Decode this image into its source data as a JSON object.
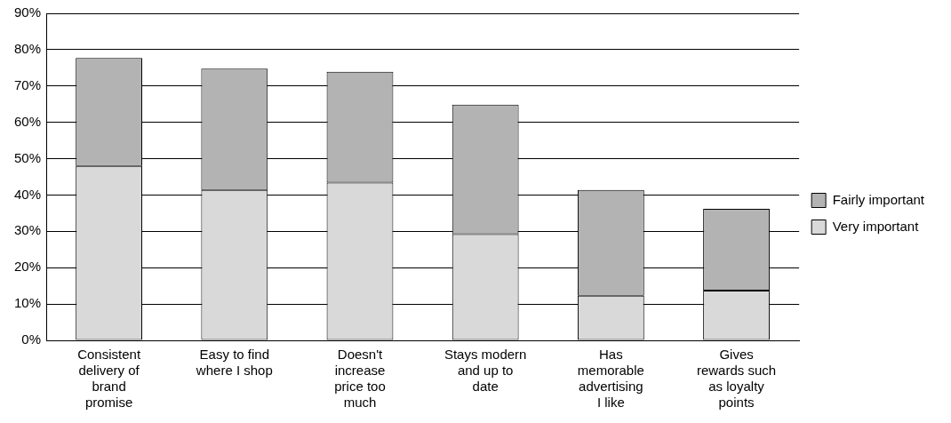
{
  "chart_data": {
    "type": "bar",
    "stacked": true,
    "categories": [
      "Consistent delivery of brand promise",
      "Easy to find where I shop",
      "Doesn't increase price too much",
      "Stays modern and up to date",
      "Has memorable advertising I like",
      "Gives rewards such as loyalty points"
    ],
    "series": [
      {
        "name": "Very important",
        "color": "#d9d9d9",
        "values": [
          48.0,
          41.4,
          43.4,
          29.2,
          12.3,
          13.7
        ]
      },
      {
        "name": "Fairly important",
        "color": "#b3b3b3",
        "values": [
          29.7,
          33.4,
          30.5,
          35.7,
          29.1,
          22.5
        ]
      }
    ],
    "ylim": [
      0,
      90
    ],
    "yticks": [
      {
        "value": 0,
        "label": "0%"
      },
      {
        "value": 10,
        "label": "10%"
      },
      {
        "value": 20,
        "label": "20%"
      },
      {
        "value": 30,
        "label": "30%"
      },
      {
        "value": 40,
        "label": "40%"
      },
      {
        "value": 50,
        "label": "50%"
      },
      {
        "value": 60,
        "label": "60%"
      },
      {
        "value": 70,
        "label": "70%"
      },
      {
        "value": 80,
        "label": "80%"
      },
      {
        "value": 90,
        "label": "90%"
      }
    ],
    "grid": "y",
    "legend": "right"
  }
}
